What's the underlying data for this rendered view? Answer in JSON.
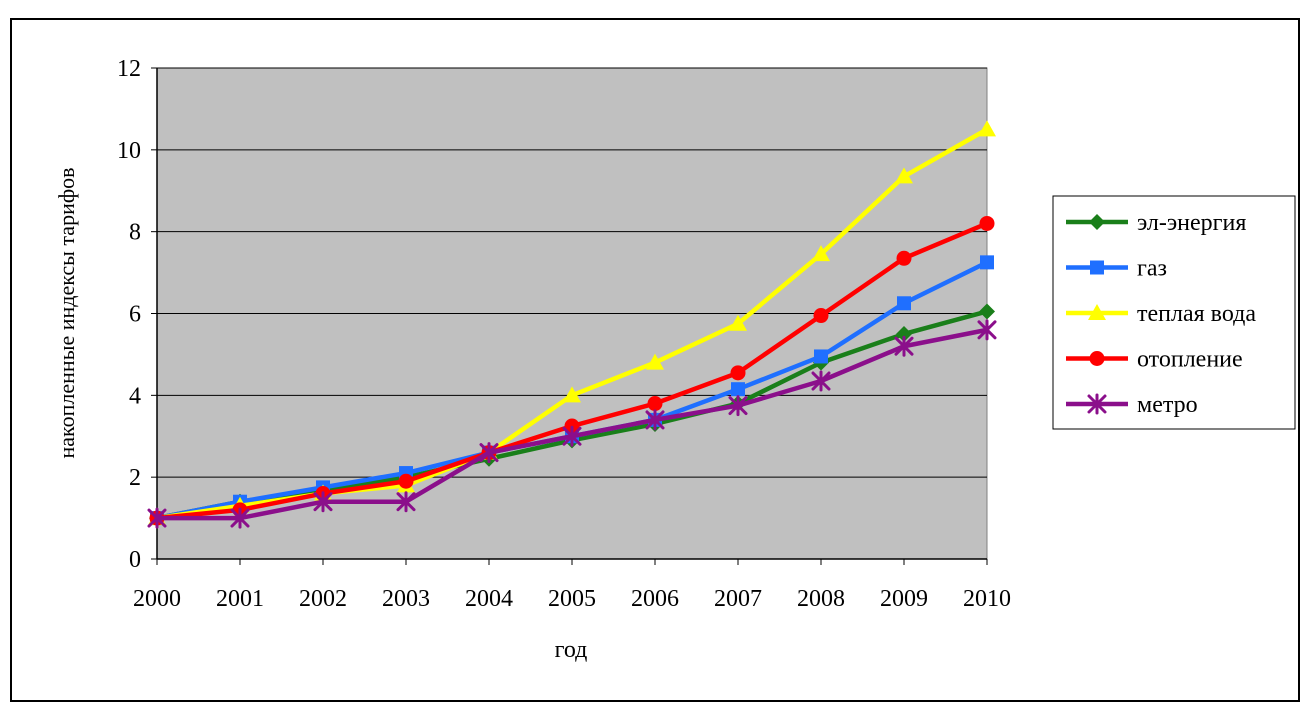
{
  "colors": {
    "plot_bg": "#c0c0c0",
    "gridline": "#000000",
    "page_bg": "#ffffff"
  },
  "chart_data": {
    "type": "line",
    "xlabel": "год",
    "ylabel": "накопленные индексы тарифов",
    "ylim": [
      0,
      12
    ],
    "yticks": [
      0,
      2,
      4,
      6,
      8,
      10,
      12
    ],
    "x": [
      "2000",
      "2001",
      "2002",
      "2003",
      "2004",
      "2005",
      "2006",
      "2007",
      "2008",
      "2009",
      "2010"
    ],
    "grid": "horizontal major",
    "legend_position": "right",
    "series": [
      {
        "name": "эл-энергия",
        "color": "#1a7f1a",
        "marker": "diamond",
        "values": [
          1.0,
          1.4,
          1.7,
          2.0,
          2.45,
          2.9,
          3.3,
          3.8,
          4.8,
          5.5,
          6.05
        ]
      },
      {
        "name": "газ",
        "color": "#1f6fff",
        "marker": "square",
        "values": [
          1.0,
          1.4,
          1.75,
          2.1,
          2.6,
          3.0,
          3.4,
          4.15,
          4.95,
          6.25,
          7.25
        ]
      },
      {
        "name": "теплая вода",
        "color": "#ffff00",
        "marker": "triangle",
        "values": [
          1.0,
          1.3,
          1.6,
          1.8,
          2.6,
          4.0,
          4.8,
          5.75,
          7.45,
          9.35,
          10.5
        ]
      },
      {
        "name": "отопление",
        "color": "#ff0000",
        "marker": "circle",
        "values": [
          1.0,
          1.2,
          1.6,
          1.9,
          2.6,
          3.25,
          3.8,
          4.55,
          5.95,
          7.35,
          8.2
        ]
      },
      {
        "name": "метро",
        "color": "#8b0f8b",
        "marker": "star",
        "values": [
          1.0,
          1.0,
          1.4,
          1.4,
          2.6,
          3.0,
          3.4,
          3.75,
          4.35,
          5.2,
          5.6
        ]
      }
    ]
  }
}
